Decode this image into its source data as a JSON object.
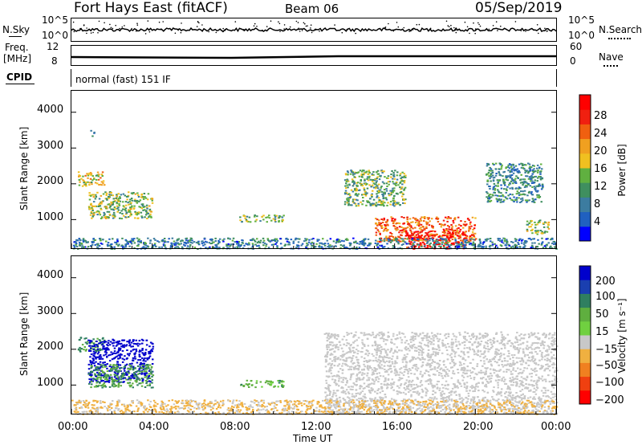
{
  "header": {
    "station": "Fort Hays East (fitACF)",
    "beam": "Beam 06",
    "date": "05/Sep/2019"
  },
  "strip_noise": {
    "left_label": "N.Sky",
    "right_label": "N.Search",
    "left_ticks": [
      "10^5",
      "10^0"
    ],
    "right_ticks": [
      "10^5",
      "10^0"
    ]
  },
  "strip_freq": {
    "left_label_1": "Freq.",
    "left_label_2": "[MHz]",
    "left_ticks": [
      "12",
      "8"
    ],
    "right_ticks": [
      "60",
      "0"
    ],
    "right_label": "Nave"
  },
  "cpid": {
    "label": "CPID",
    "text": "normal (fast) 151 IF"
  },
  "power_panel": {
    "ylabel": "Slant Range [km]",
    "yticks": [
      "4000",
      "3000",
      "2000",
      "1000"
    ],
    "colorbar_label": "Power [dB]",
    "colorbar_ticks": [
      "28",
      "24",
      "20",
      "16",
      "12",
      "8",
      "4"
    ],
    "colors": [
      "#0000ff",
      "#2060c0",
      "#3c7ca0",
      "#3f8f5f",
      "#60b040",
      "#f0c020",
      "#f0a020",
      "#f06010",
      "#f02010",
      "#ff0000"
    ]
  },
  "velocity_panel": {
    "ylabel": "Slant Range [km]",
    "yticks": [
      "4000",
      "3000",
      "2000",
      "1000"
    ],
    "colorbar_label": "Velocity [m s⁻¹]",
    "colorbar_ticks": [
      "200",
      "100",
      "50",
      "15",
      "−15",
      "−50",
      "−100",
      "−200"
    ],
    "colors": [
      "#0000cc",
      "#1a3fb0",
      "#2f7f60",
      "#5faf3f",
      "#70d040",
      "#c8c8c8",
      "#f0b040",
      "#f08020",
      "#f04010",
      "#ff0000"
    ]
  },
  "xaxis": {
    "label": "Time UT",
    "ticks": [
      "00:00",
      "04:00",
      "08:00",
      "12:00",
      "16:00",
      "20:00",
      "00:00"
    ]
  },
  "chart_data": {
    "type": "heatmap",
    "x_unit": "hours UT",
    "y_unit": "km",
    "xlim": [
      0,
      24
    ],
    "ylim": [
      200,
      4600
    ],
    "power_patches": [
      {
        "t": [
          0.3,
          1.6
        ],
        "r": [
          1950,
          2350
        ],
        "level": 0.55
      },
      {
        "t": [
          0.8,
          4.0
        ],
        "r": [
          1050,
          1800
        ],
        "level": 0.45
      },
      {
        "t": [
          0.9,
          1.1
        ],
        "r": [
          3350,
          3550
        ],
        "level": 0.3
      },
      {
        "t": [
          8.3,
          10.5
        ],
        "r": [
          950,
          1150
        ],
        "level": 0.4
      },
      {
        "t": [
          13.5,
          16.5
        ],
        "r": [
          1400,
          2400
        ],
        "level": 0.4
      },
      {
        "t": [
          15.0,
          20.0
        ],
        "r": [
          400,
          1100
        ],
        "level": 0.75
      },
      {
        "t": [
          16.5,
          19.5
        ],
        "r": [
          200,
          700
        ],
        "level": 0.95
      },
      {
        "t": [
          20.5,
          23.3
        ],
        "r": [
          1500,
          2600
        ],
        "level": 0.3
      },
      {
        "t": [
          22.5,
          23.6
        ],
        "r": [
          600,
          1000
        ],
        "level": 0.45
      },
      {
        "t": [
          0.0,
          24.0
        ],
        "r": [
          200,
          500
        ],
        "level": 0.25
      }
    ],
    "velocity_patches": [
      {
        "t": [
          0.3,
          1.6
        ],
        "r": [
          1950,
          2350
        ],
        "v": 50
      },
      {
        "t": [
          0.8,
          4.0
        ],
        "r": [
          1100,
          2300
        ],
        "v": 200
      },
      {
        "t": [
          0.8,
          4.0
        ],
        "r": [
          950,
          1600
        ],
        "v": 50
      },
      {
        "t": [
          8.3,
          10.5
        ],
        "r": [
          950,
          1150
        ],
        "v": 40
      },
      {
        "t": [
          12.5,
          24.0
        ],
        "r": [
          200,
          2500
        ],
        "v": 0
      },
      {
        "t": [
          0.0,
          24.0
        ],
        "r": [
          200,
          600
        ],
        "v": -20
      }
    ]
  }
}
